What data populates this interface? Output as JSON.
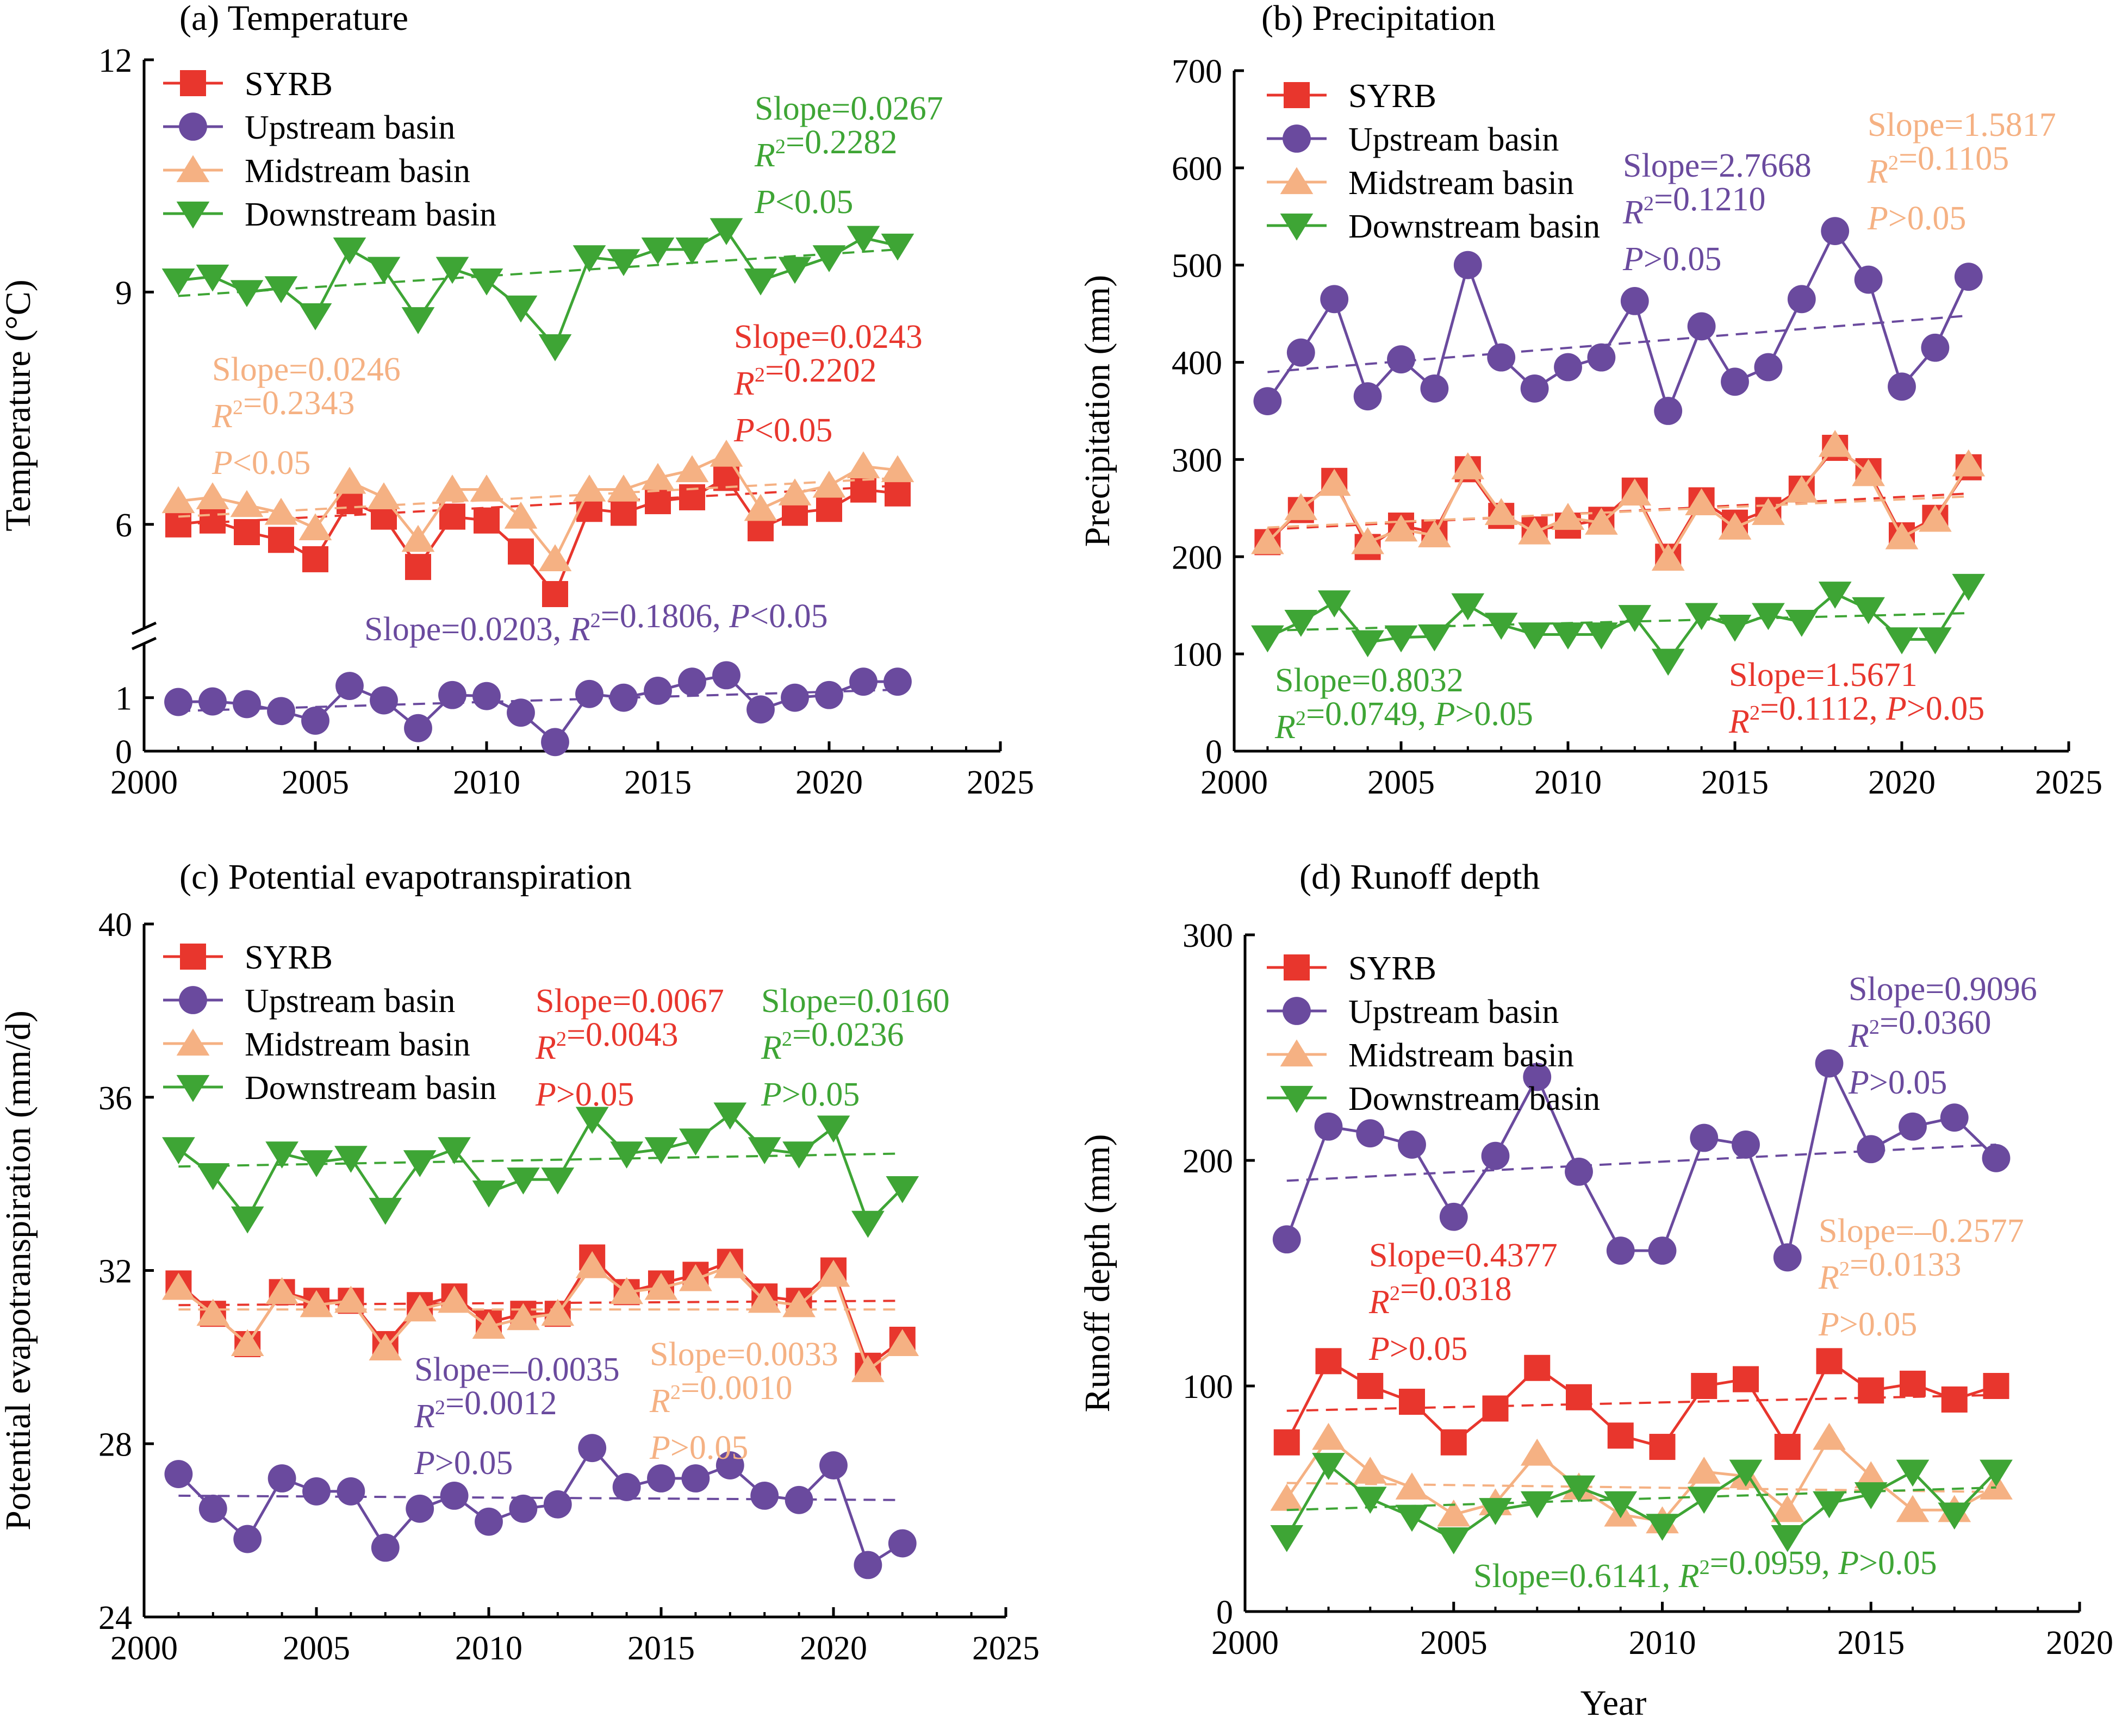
{
  "colors": {
    "SYRB": "#e8362d",
    "Upstream": "#6a4a9e",
    "Midstream": "#f5b183",
    "Downstream": "#3ea535",
    "axis": "#000000"
  },
  "chart_data": [
    {
      "id": "a",
      "type": "line",
      "title": "(a) Temperature",
      "xlabel": "",
      "ylabel": "Temperature (°C)",
      "xlim": [
        2000,
        2025
      ],
      "xticks": [
        2000,
        2005,
        2010,
        2015,
        2020,
        2025
      ],
      "broken_axis": true,
      "lower_ylim": [
        0,
        1.8
      ],
      "lower_yticks": [
        0,
        1
      ],
      "upper_ylim": [
        4.7,
        12
      ],
      "upper_yticks": [
        6,
        9,
        12
      ],
      "legend": [
        "SYRB",
        "Upstream basin",
        "Midstream basin",
        "Downstream basin"
      ],
      "legend_position": "top-left",
      "x": [
        2001,
        2002,
        2003,
        2004,
        2005,
        2006,
        2007,
        2008,
        2009,
        2010,
        2011,
        2012,
        2013,
        2014,
        2015,
        2016,
        2017,
        2018,
        2019,
        2020,
        2021,
        2022
      ],
      "series": [
        {
          "name": "SYRB",
          "key": "SYRB",
          "marker": "square",
          "values": [
            6.0,
            6.05,
            5.9,
            5.8,
            5.55,
            6.3,
            6.1,
            5.45,
            6.1,
            6.05,
            5.65,
            5.1,
            6.2,
            6.15,
            6.3,
            6.35,
            6.6,
            5.95,
            6.15,
            6.2,
            6.45,
            6.4
          ],
          "trend": [
            6.0,
            6.5
          ]
        },
        {
          "name": "Upstream basin",
          "key": "Upstream",
          "marker": "circle",
          "values": [
            0.92,
            0.93,
            0.88,
            0.75,
            0.57,
            1.22,
            0.95,
            0.43,
            1.05,
            1.03,
            0.72,
            0.17,
            1.07,
            1.0,
            1.13,
            1.3,
            1.42,
            0.78,
            1.0,
            1.05,
            1.3,
            1.3
          ],
          "trend": [
            0.75,
            1.15
          ]
        },
        {
          "name": "Midstream basin",
          "key": "Midstream",
          "marker": "triangle-up",
          "values": [
            6.3,
            6.35,
            6.25,
            6.15,
            5.95,
            6.55,
            6.35,
            5.8,
            6.45,
            6.45,
            6.1,
            5.55,
            6.45,
            6.45,
            6.6,
            6.7,
            6.9,
            6.2,
            6.4,
            6.5,
            6.75,
            6.7
          ],
          "trend": [
            6.1,
            6.6
          ]
        },
        {
          "name": "Downstream basin",
          "key": "Downstream",
          "marker": "triangle-down",
          "values": [
            9.15,
            9.2,
            9.0,
            9.05,
            8.7,
            9.55,
            9.3,
            8.65,
            9.3,
            9.15,
            8.8,
            8.3,
            9.45,
            9.4,
            9.55,
            9.55,
            9.8,
            9.15,
            9.3,
            9.45,
            9.7,
            9.6
          ],
          "trend": [
            8.95,
            9.55
          ]
        }
      ],
      "annotations": [
        {
          "key": "Downstream",
          "lines": [
            "Slope=0.0267",
            "R²=0.2282",
            "P<0.05"
          ]
        },
        {
          "key": "SYRB",
          "lines": [
            "Slope=0.0243",
            "R²=0.2202",
            "P<0.05"
          ]
        },
        {
          "key": "Midstream",
          "lines": [
            "Slope=0.0246",
            "R²=0.2343",
            "P<0.05"
          ]
        },
        {
          "key": "Upstream",
          "lines": [
            "Slope=0.0203, R²=0.1806, P<0.05"
          ]
        }
      ]
    },
    {
      "id": "b",
      "type": "line",
      "title": "(b) Precipitation",
      "xlabel": "",
      "ylabel": "Precipitation (mm)",
      "xlim": [
        2000,
        2025
      ],
      "xticks": [
        2000,
        2005,
        2010,
        2015,
        2020,
        2025
      ],
      "ylim": [
        0,
        700
      ],
      "yticks": [
        0,
        100,
        200,
        300,
        400,
        500,
        600,
        700
      ],
      "legend": [
        "SYRB",
        "Upstream basin",
        "Midstream basin",
        "Downstream basin"
      ],
      "legend_position": "top-left",
      "x": [
        2001,
        2002,
        2003,
        2004,
        2005,
        2006,
        2007,
        2008,
        2009,
        2010,
        2011,
        2012,
        2013,
        2014,
        2015,
        2016,
        2017,
        2018,
        2019,
        2020,
        2021,
        2022
      ],
      "series": [
        {
          "name": "SYRB",
          "key": "SYRB",
          "marker": "square",
          "values": [
            215,
            248,
            278,
            210,
            232,
            225,
            290,
            242,
            228,
            232,
            238,
            268,
            200,
            258,
            235,
            248,
            270,
            312,
            288,
            222,
            240,
            292
          ],
          "trend": [
            228,
            265
          ]
        },
        {
          "name": "Upstream basin",
          "key": "Upstream",
          "marker": "circle",
          "values": [
            360,
            410,
            465,
            365,
            403,
            373,
            500,
            405,
            373,
            395,
            405,
            463,
            350,
            437,
            380,
            395,
            465,
            535,
            485,
            375,
            415,
            488
          ],
          "trend": [
            390,
            448
          ]
        },
        {
          "name": "Midstream basin",
          "key": "Midstream",
          "marker": "triangle-up",
          "values": [
            215,
            250,
            275,
            215,
            228,
            222,
            292,
            245,
            225,
            240,
            235,
            265,
            198,
            255,
            230,
            245,
            268,
            315,
            285,
            220,
            238,
            295
          ],
          "trend": [
            230,
            262
          ]
        },
        {
          "name": "Downstream basin",
          "key": "Downstream",
          "marker": "triangle-down",
          "values": [
            117,
            133,
            153,
            112,
            117,
            118,
            150,
            130,
            120,
            120,
            120,
            138,
            93,
            140,
            128,
            140,
            133,
            162,
            146,
            115,
            115,
            170
          ],
          "trend": [
            124,
            142
          ]
        }
      ],
      "annotations": [
        {
          "key": "Upstream",
          "lines": [
            "Slope=2.7668",
            "R²=0.1210",
            "P>0.05"
          ]
        },
        {
          "key": "Midstream",
          "lines": [
            "Slope=1.5817",
            "R²=0.1105",
            "P>0.05"
          ]
        },
        {
          "key": "Downstream",
          "lines": [
            "Slope=0.8032",
            "R²=0.0749, P>0.05"
          ]
        },
        {
          "key": "SYRB",
          "lines": [
            "Slope=1.5671",
            "R²=0.1112, P>0.05"
          ]
        }
      ]
    },
    {
      "id": "c",
      "type": "line",
      "title": "(c) Potential evapotranspiration",
      "xlabel": "",
      "ylabel": "Potential evapotranspiration (mm/d)",
      "xlim": [
        2000,
        2025
      ],
      "xticks": [
        2000,
        2005,
        2010,
        2015,
        2020,
        2025
      ],
      "ylim": [
        24,
        40
      ],
      "yticks": [
        24,
        28,
        32,
        36,
        40
      ],
      "legend": [
        "SYRB",
        "Upstream basin",
        "Midstream basin",
        "Downstream basin"
      ],
      "legend_position": "top-left",
      "x": [
        2001,
        2002,
        2003,
        2004,
        2005,
        2006,
        2007,
        2008,
        2009,
        2010,
        2011,
        2012,
        2013,
        2014,
        2015,
        2016,
        2017,
        2018,
        2019,
        2020,
        2021,
        2022
      ],
      "series": [
        {
          "name": "SYRB",
          "key": "SYRB",
          "marker": "square",
          "values": [
            31.7,
            31.0,
            30.3,
            31.5,
            31.3,
            31.3,
            30.3,
            31.2,
            31.4,
            30.8,
            31.0,
            31.0,
            32.3,
            31.5,
            31.7,
            31.9,
            32.2,
            31.4,
            31.3,
            32.0,
            29.8,
            30.4
          ],
          "trend": [
            31.2,
            31.3
          ]
        },
        {
          "name": "Upstream basin",
          "key": "Upstream",
          "marker": "circle",
          "values": [
            27.3,
            26.5,
            25.8,
            27.2,
            26.9,
            26.9,
            25.6,
            26.5,
            26.8,
            26.2,
            26.5,
            26.6,
            27.9,
            27.0,
            27.2,
            27.2,
            27.5,
            26.8,
            26.7,
            27.5,
            25.2,
            25.7
          ],
          "trend": [
            26.8,
            26.7
          ]
        },
        {
          "name": "Midstream basin",
          "key": "Midstream",
          "marker": "triangle-up",
          "values": [
            31.6,
            31.0,
            30.3,
            31.5,
            31.2,
            31.3,
            30.2,
            31.1,
            31.3,
            30.7,
            30.9,
            31.0,
            32.1,
            31.5,
            31.6,
            31.8,
            32.1,
            31.3,
            31.2,
            31.9,
            29.7,
            30.3
          ],
          "trend": [
            31.1,
            31.1
          ]
        },
        {
          "name": "Downstream basin",
          "key": "Downstream",
          "marker": "triangle-down",
          "values": [
            34.8,
            34.2,
            33.2,
            34.7,
            34.5,
            34.6,
            33.4,
            34.5,
            34.8,
            33.8,
            34.1,
            34.1,
            35.5,
            34.7,
            34.8,
            35.0,
            35.6,
            34.8,
            34.7,
            35.3,
            33.1,
            33.9
          ],
          "trend": [
            34.4,
            34.7
          ]
        }
      ],
      "annotations": [
        {
          "key": "SYRB",
          "lines": [
            "Slope=0.0067",
            "R²=0.0043",
            "P>0.05"
          ]
        },
        {
          "key": "Downstream",
          "lines": [
            "Slope=0.0160",
            "R²=0.0236",
            "P>0.05"
          ]
        },
        {
          "key": "Upstream",
          "lines": [
            "Slope=–0.0035",
            "R²=0.0012",
            "P>0.05"
          ]
        },
        {
          "key": "Midstream",
          "lines": [
            "Slope=0.0033",
            "R²=0.0010",
            "P>0.05"
          ]
        }
      ]
    },
    {
      "id": "d",
      "type": "line",
      "title": "(d) Runoff depth",
      "xlabel": "Year",
      "ylabel": "Runoff depth (mm)",
      "xlim": [
        2000,
        2020
      ],
      "xticks": [
        2000,
        2005,
        2010,
        2015,
        2020
      ],
      "ylim": [
        0,
        300
      ],
      "yticks": [
        0,
        100,
        200,
        300
      ],
      "legend": [
        "SYRB",
        "Upstream basin",
        "Midstream basin",
        "Downstream basin"
      ],
      "legend_position": "top-left",
      "x": [
        2001,
        2002,
        2003,
        2004,
        2005,
        2006,
        2007,
        2008,
        2009,
        2010,
        2011,
        2012,
        2013,
        2014,
        2015,
        2016,
        2017,
        2018
      ],
      "series": [
        {
          "name": "SYRB",
          "key": "SYRB",
          "marker": "square",
          "values": [
            75,
            111,
            100,
            93,
            75,
            90,
            108,
            95,
            78,
            73,
            100,
            103,
            73,
            111,
            98,
            101,
            94,
            100
          ],
          "trend": [
            89,
            96
          ]
        },
        {
          "name": "Upstream basin",
          "key": "Upstream",
          "marker": "circle",
          "values": [
            165,
            215,
            212,
            207,
            175,
            202,
            237,
            195,
            160,
            160,
            210,
            207,
            157,
            243,
            205,
            215,
            219,
            201
          ],
          "trend": [
            191,
            207
          ]
        },
        {
          "name": "Midstream basin",
          "key": "Midstream",
          "marker": "triangle-up",
          "values": [
            50,
            77,
            62,
            55,
            43,
            48,
            70,
            55,
            43,
            40,
            62,
            60,
            45,
            77,
            60,
            45,
            45,
            55
          ],
          "trend": [
            57,
            53
          ]
        },
        {
          "name": "Downstream basin",
          "key": "Downstream",
          "marker": "triangle-down",
          "values": [
            33,
            65,
            50,
            42,
            32,
            45,
            48,
            55,
            48,
            38,
            50,
            62,
            33,
            48,
            52,
            62,
            43,
            62
          ],
          "trend": [
            45,
            55
          ]
        }
      ],
      "annotations": [
        {
          "key": "Upstream",
          "lines": [
            "Slope=0.9096",
            "R²=0.0360",
            "P>0.05"
          ]
        },
        {
          "key": "SYRB",
          "lines": [
            "Slope=0.4377",
            "R²=0.0318",
            "P>0.05"
          ]
        },
        {
          "key": "Midstream",
          "lines": [
            "Slope=–0.2577",
            "R²=0.0133",
            "P>0.05"
          ]
        },
        {
          "key": "Downstream",
          "lines": [
            "Slope=0.6141, R²=0.0959, P>0.05"
          ]
        }
      ]
    }
  ]
}
